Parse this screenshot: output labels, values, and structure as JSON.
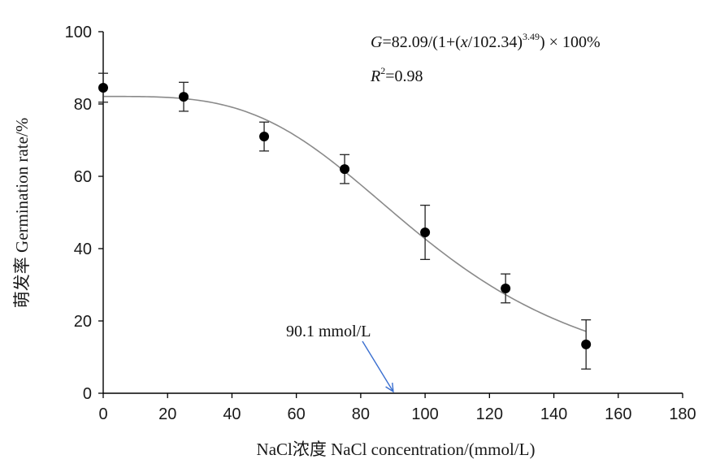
{
  "chart_data": {
    "type": "scatter",
    "xlabel": "NaCl浓度 NaCl concentration/(mmol/L)",
    "ylabel": "萌发率 Germination rate/%",
    "xlim": [
      0,
      180
    ],
    "ylim": [
      0,
      100
    ],
    "xticks": [
      "0",
      "20",
      "40",
      "60",
      "80",
      "100",
      "120",
      "140",
      "160",
      "180"
    ],
    "yticks": [
      "0",
      "20",
      "40",
      "60",
      "80",
      "100"
    ],
    "grid": false,
    "series": [
      {
        "x": [
          0,
          25,
          50,
          75,
          100,
          125,
          150
        ],
        "y": [
          84.5,
          82,
          71,
          62,
          44.5,
          29,
          13.5
        ],
        "error": [
          4,
          4,
          4,
          4,
          7.5,
          4,
          6.8
        ]
      }
    ],
    "fit": {
      "a": 82.09,
      "x0": 102.34,
      "b": 3.49,
      "x_range": [
        0,
        150
      ],
      "color": "#8a8a8a"
    },
    "equation": {
      "G": "G",
      "lhs_rest": "=82.09/(1+(",
      "x": "x",
      "mid": "/102.34)",
      "exp": "3.49",
      "tail": ") × 100%",
      "R": "R",
      "r_sup": "2",
      "r_val": "=0.98"
    },
    "annotation": {
      "text": "90.1 mmol/L",
      "x": 90.1,
      "arrow_color": "#3a6fd0"
    },
    "marker_color": "#000000",
    "axis_color": "#000000"
  }
}
